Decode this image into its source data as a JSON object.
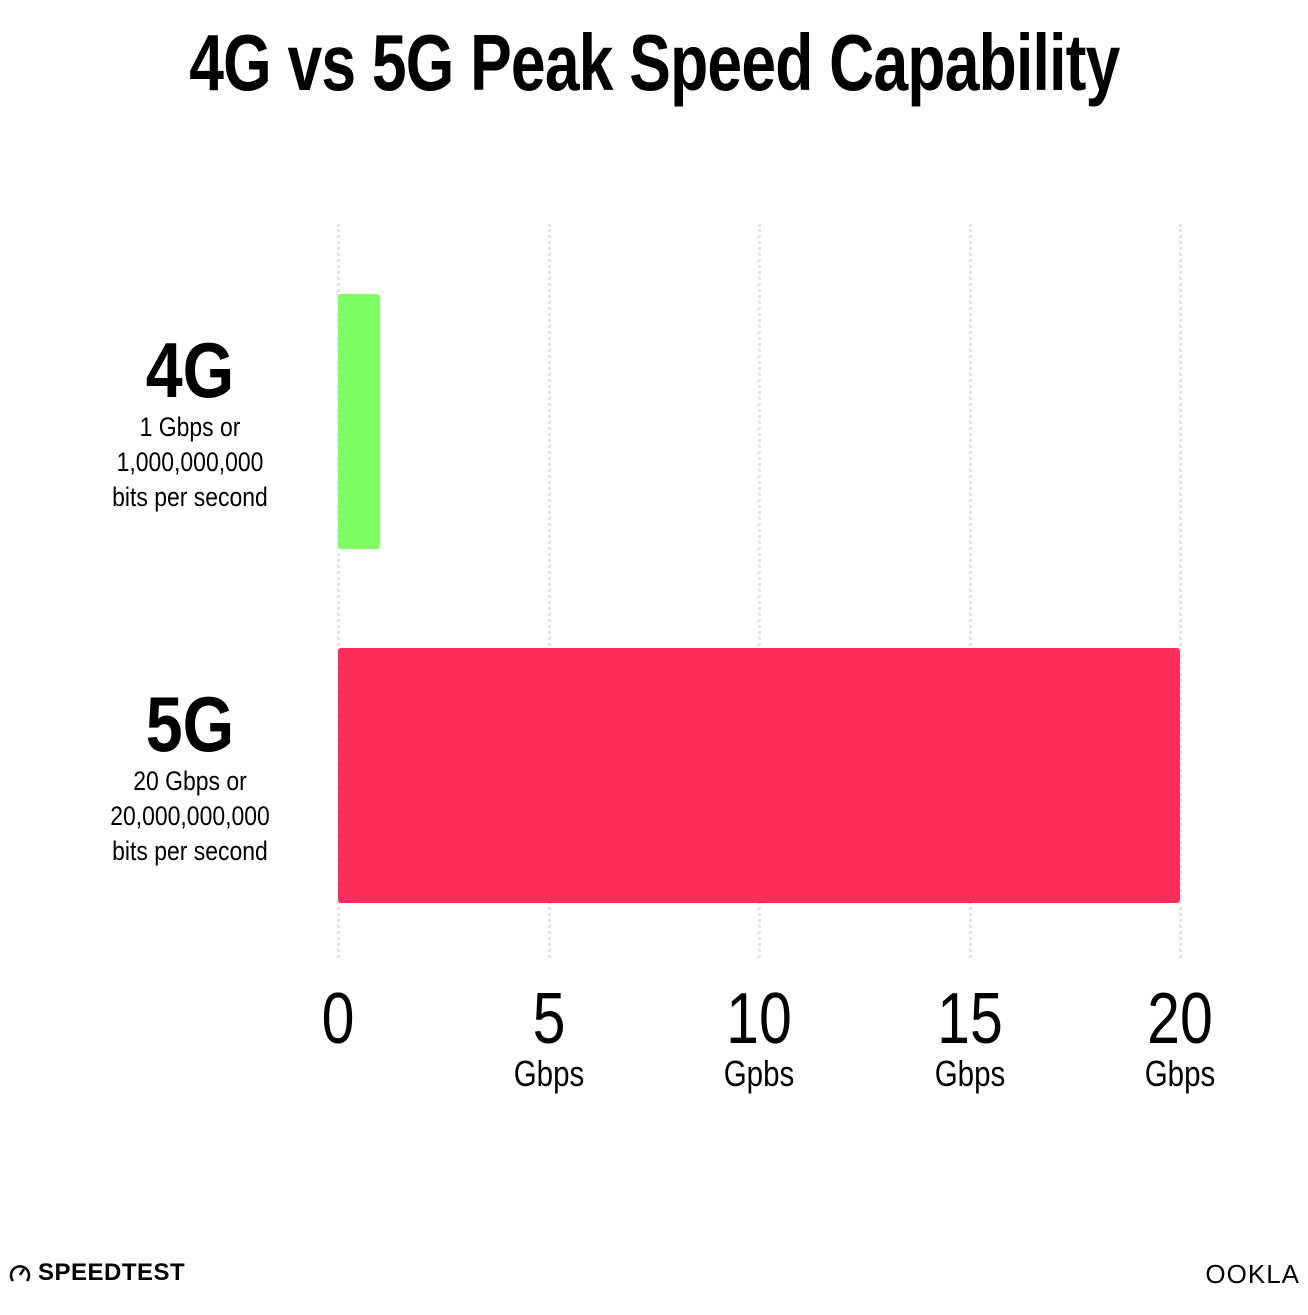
{
  "chart_data": {
    "type": "bar",
    "orientation": "horizontal",
    "title": "4G vs 5G Peak Speed Capability",
    "categories": [
      "4G",
      "5G"
    ],
    "category_sublabels": [
      [
        "1 Gbps or",
        "1,000,000,000",
        "bits per second"
      ],
      [
        "20 Gbps or",
        "20,000,000,000",
        "bits per second"
      ]
    ],
    "values": [
      1,
      20
    ],
    "colors": [
      "#80ff64",
      "#ff2d5a"
    ],
    "xlim": [
      0,
      20
    ],
    "ticks": [
      {
        "value": 0,
        "label": "0",
        "unit": ""
      },
      {
        "value": 5,
        "label": "5",
        "unit": "Gbps"
      },
      {
        "value": 10,
        "label": "10",
        "unit": "Gpbs"
      },
      {
        "value": 15,
        "label": "15",
        "unit": "Gbps"
      },
      {
        "value": 20,
        "label": "20",
        "unit": "Gbps"
      }
    ],
    "grid": "vertical dotted",
    "gridColor": "#e2e4ef"
  },
  "footer": {
    "left_logo": "SPEEDTEST",
    "right_logo": "OOKLA"
  }
}
